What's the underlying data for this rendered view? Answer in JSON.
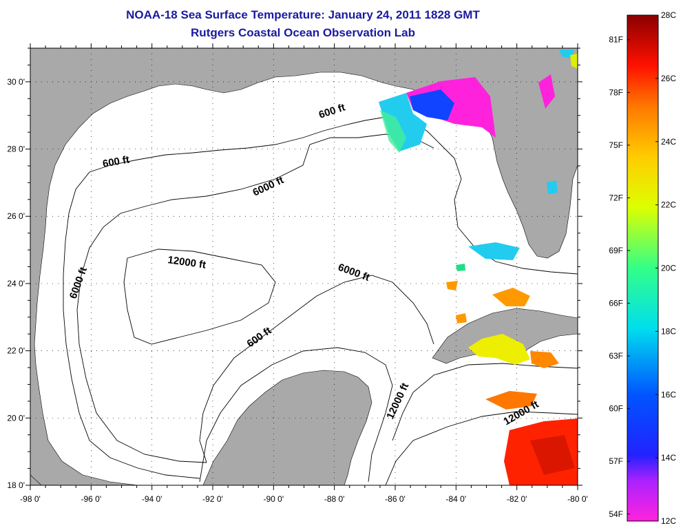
{
  "title": {
    "line1": "NOAA-18 Sea Surface Temperature:  January 24, 2011 1828 GMT",
    "line2": "Rutgers Coastal Ocean Observation Lab"
  },
  "axes": {
    "x_ticks": [
      "-98 0'",
      "-96 0'",
      "-94 0'",
      "-92 0'",
      "-90 0'",
      "-88 0'",
      "-86 0'",
      "-84 0'",
      "-82 0'",
      "-80 0'"
    ],
    "y_ticks": [
      "30 0'",
      "28 0'",
      "26 0'",
      "24 0'",
      "22 0'",
      "20 0'",
      "18 0'"
    ],
    "lon_range": [
      -98,
      -80
    ],
    "lat_range": [
      18,
      31
    ]
  },
  "contour_labels": [
    {
      "text": "600 ft"
    },
    {
      "text": "600 ft"
    },
    {
      "text": "6000 ft"
    },
    {
      "text": "12000 ft"
    },
    {
      "text": "6000 ft"
    },
    {
      "text": "6000 ft"
    },
    {
      "text": "600 ft"
    },
    {
      "text": "12000 ft"
    },
    {
      "text": "12000 ft"
    }
  ],
  "colorbar": {
    "celsius_labels": [
      "28C",
      "26C",
      "24C",
      "22C",
      "20C",
      "18C",
      "16C",
      "14C",
      "12C"
    ],
    "fahrenheit_labels": [
      "81F",
      "78F",
      "75F",
      "72F",
      "69F",
      "66F",
      "63F",
      "60F",
      "57F",
      "54F"
    ],
    "range_c": [
      12,
      28
    ]
  },
  "colors": {
    "land": "#a9a9a9",
    "ocean": "#ffffff",
    "title": "#1a1aa0"
  }
}
